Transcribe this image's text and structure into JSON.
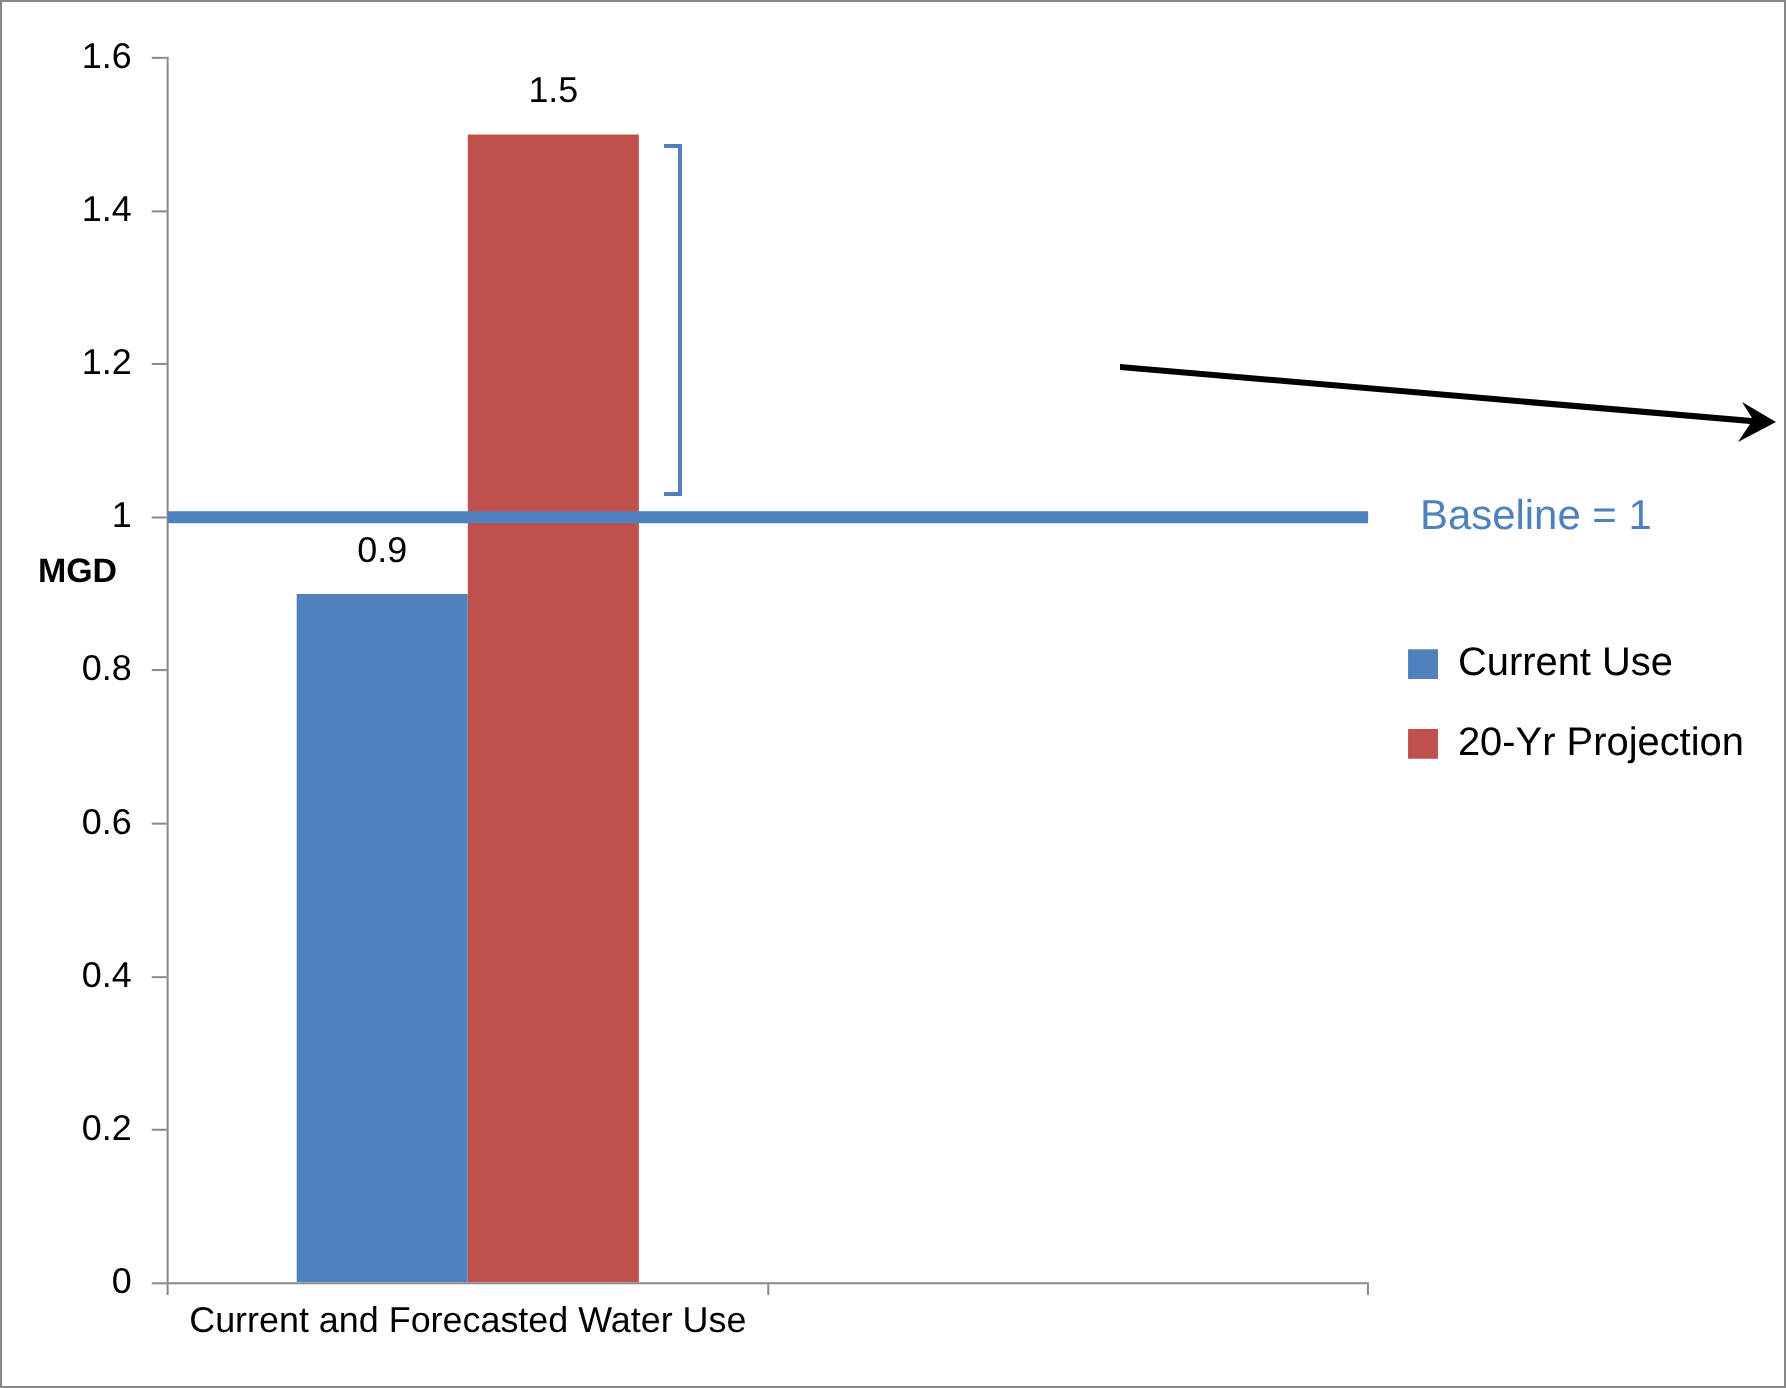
{
  "chart_data": {
    "type": "bar",
    "categories": [
      "Current and Forecasted Water Use",
      null
    ],
    "series": [
      {
        "name": "Current Use",
        "color": "#4f81bd",
        "values": [
          0.9,
          null
        ]
      },
      {
        "name": "20-Yr Projection",
        "color": "#c0504d",
        "values": [
          1.5,
          null
        ]
      }
    ],
    "ylabel": "MGD",
    "ylim": [
      0,
      1.6
    ],
    "yticks": [
      0,
      0.2,
      0.4,
      0.6,
      0.8,
      1,
      1.2,
      1.4,
      1.6
    ],
    "ref_lines": [
      {
        "axis": "y",
        "value": 1,
        "label": "Baseline = 1",
        "color": "#4f81bd"
      }
    ],
    "data_labels": true,
    "legend": "right",
    "grid": false
  }
}
